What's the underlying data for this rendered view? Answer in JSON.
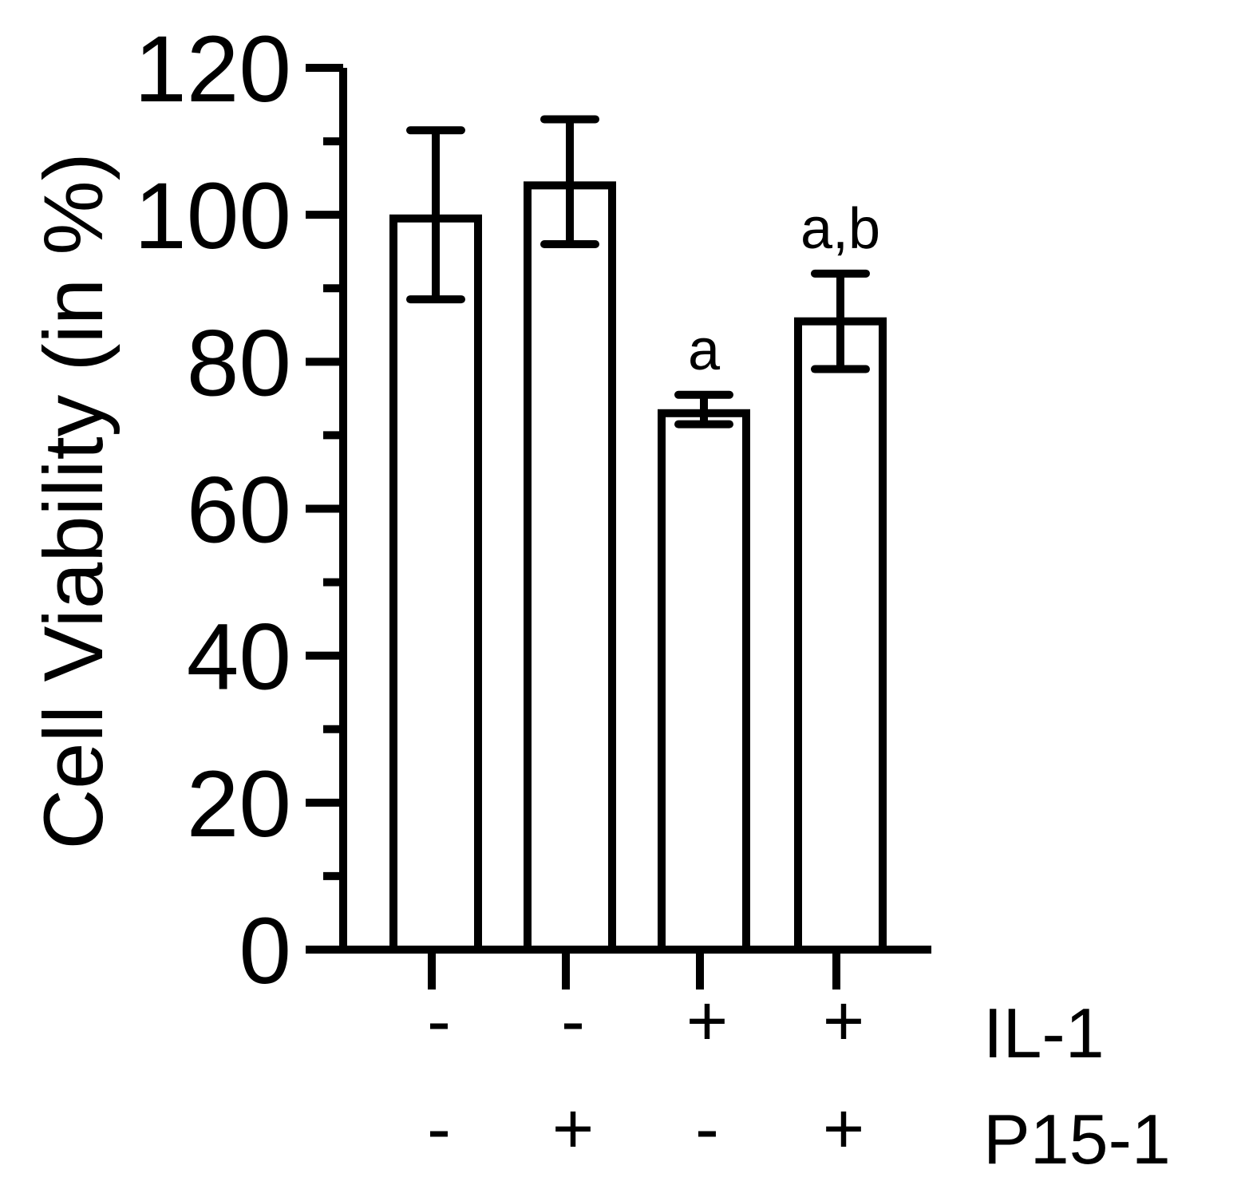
{
  "chart_data": {
    "type": "bar",
    "title": "",
    "ylabel": "Cell Viability (in %)",
    "xlabel": "",
    "ylim": [
      0,
      120
    ],
    "y_major_ticks": [
      0,
      20,
      40,
      60,
      80,
      100,
      120
    ],
    "y_minor_ticks": [
      10,
      30,
      50,
      70,
      90,
      110
    ],
    "bars": [
      {
        "il1": "-",
        "p15": "-",
        "value": 99.5,
        "err_low": 88.5,
        "err_high": 111.5,
        "annotation": ""
      },
      {
        "il1": "-",
        "p15": "+",
        "value": 104,
        "err_low": 96,
        "err_high": 113,
        "annotation": ""
      },
      {
        "il1": "+",
        "p15": "-",
        "value": 73,
        "err_low": 71.5,
        "err_high": 75.5,
        "annotation": "a"
      },
      {
        "il1": "+",
        "p15": "+",
        "value": 85.5,
        "err_low": 79,
        "err_high": 92,
        "annotation": "a,b"
      }
    ],
    "row_labels": {
      "il1": "IL-1",
      "p15": "P15-1"
    },
    "colors": {
      "bar_fill": "#ffffff",
      "stroke": "#000000"
    }
  }
}
